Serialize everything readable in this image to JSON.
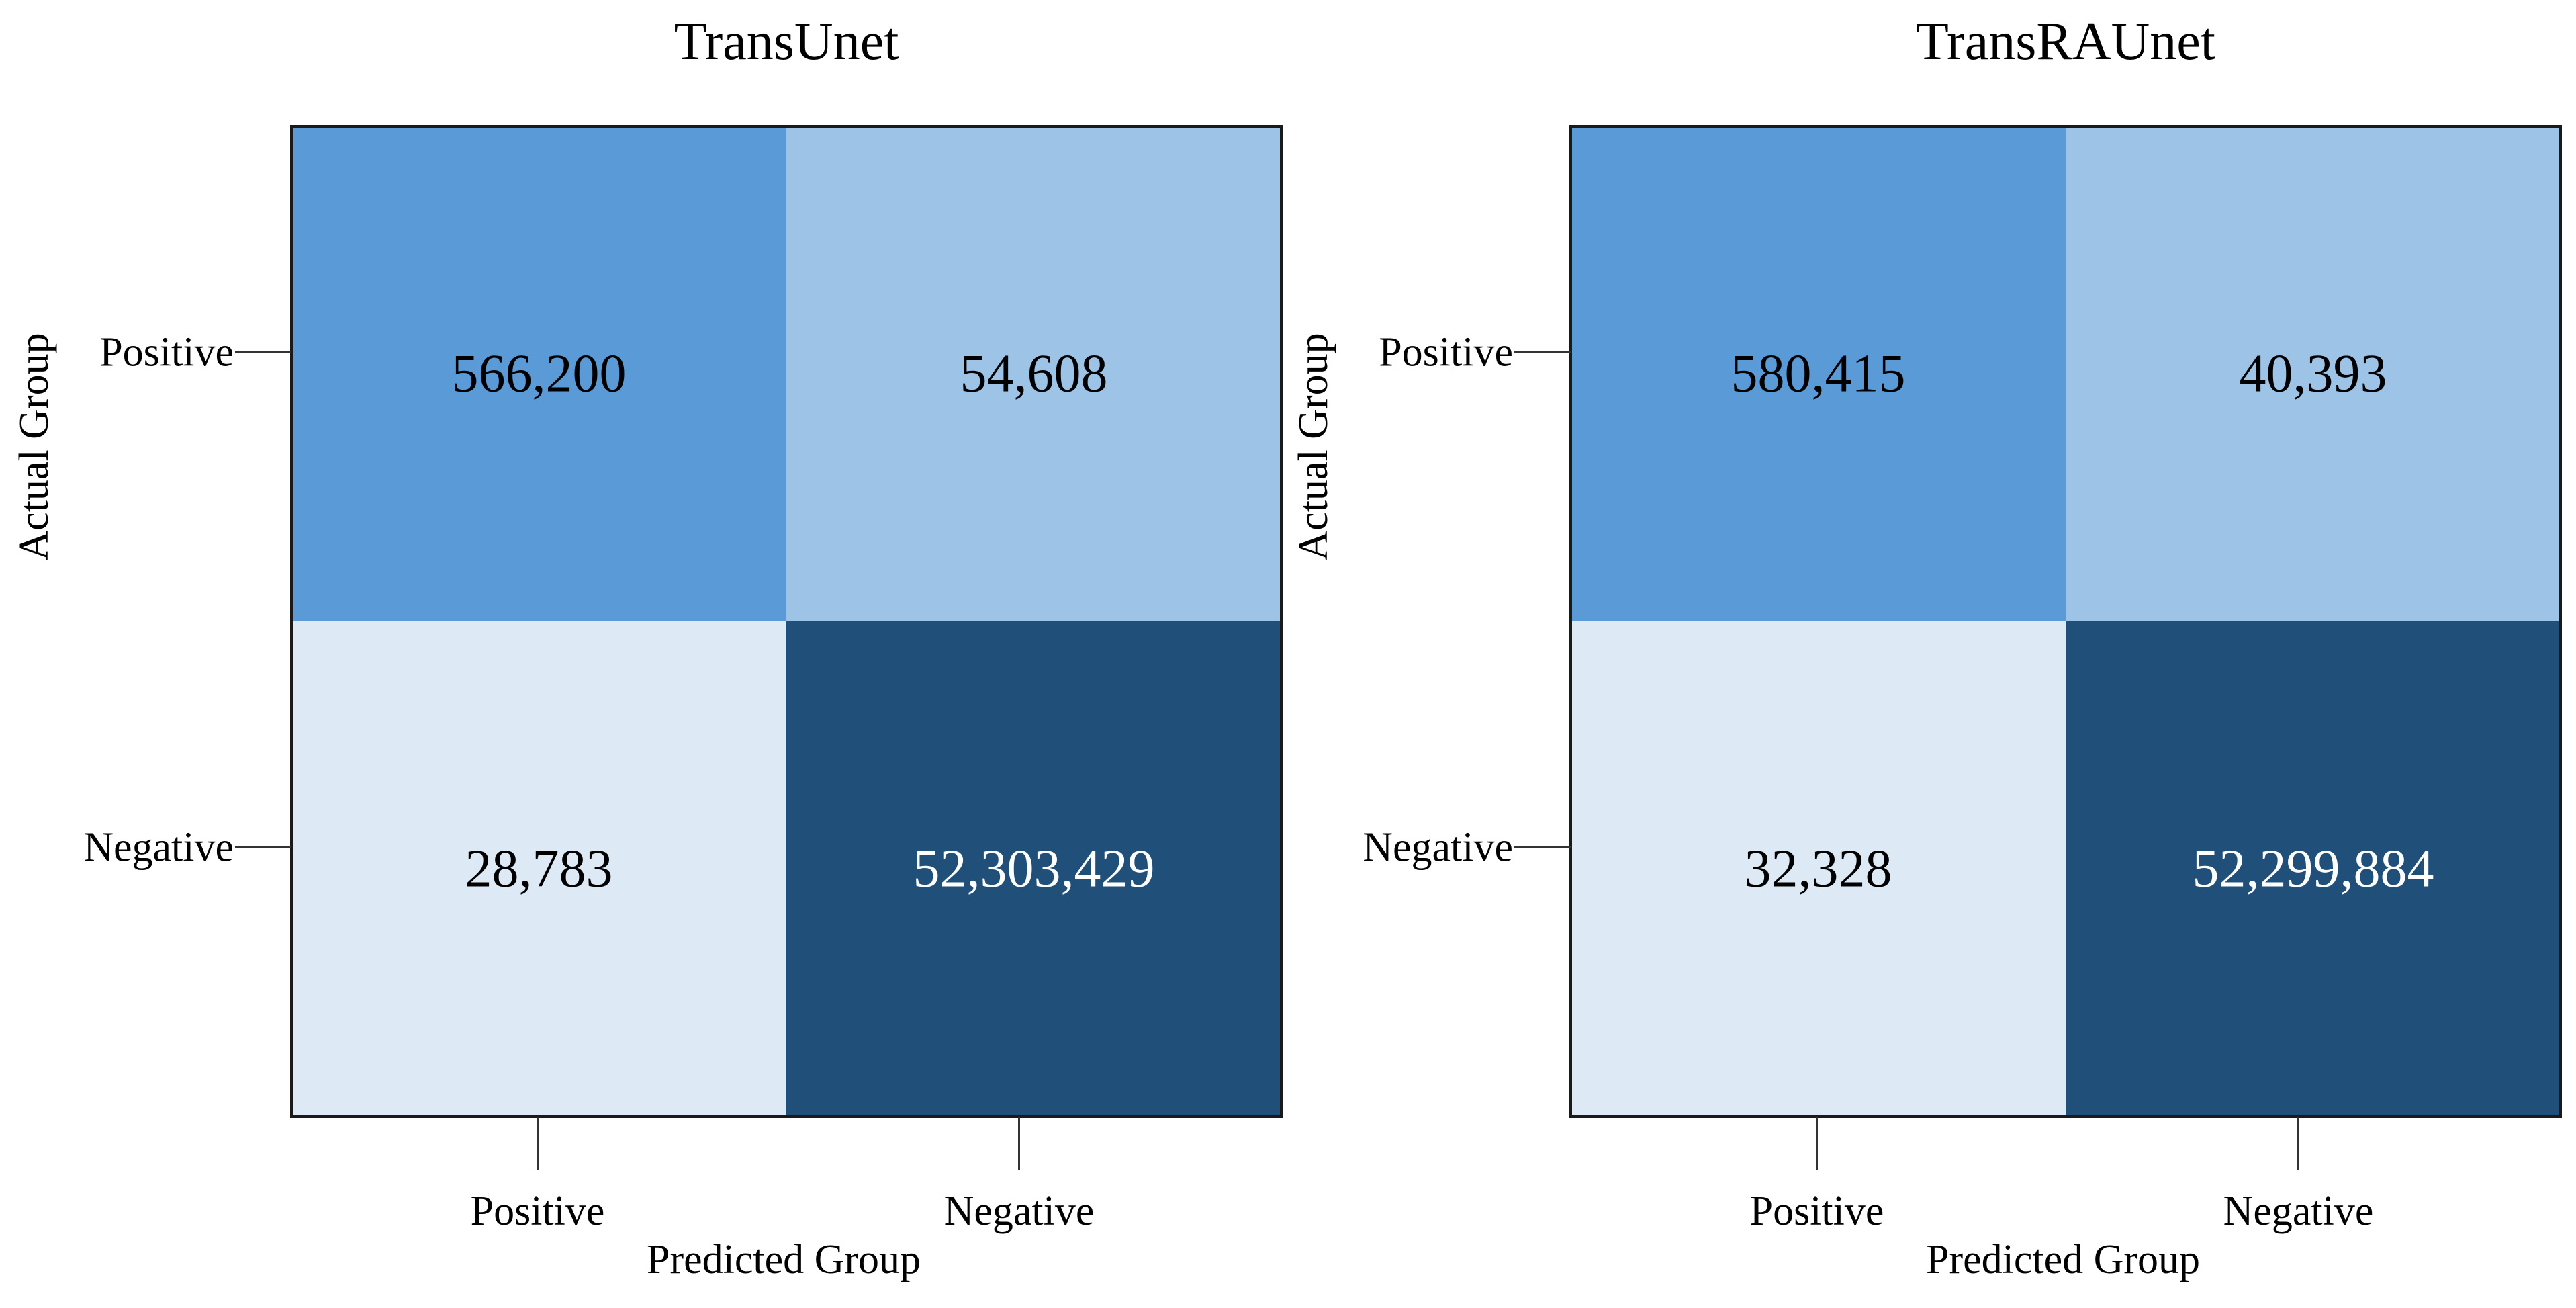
{
  "chart_data": [
    {
      "type": "heatmap",
      "title": "TransUnet",
      "xlabel": "Predicted Group",
      "ylabel": "Actual Group",
      "x_categories": [
        "Positive",
        "Negative"
      ],
      "y_categories": [
        "Positive",
        "Negative"
      ],
      "values": [
        [
          566200,
          54608
        ],
        [
          28783,
          52303429
        ]
      ],
      "cell_labels": [
        [
          "566,200",
          "54,608"
        ],
        [
          "28,783",
          "52,303,429"
        ]
      ],
      "cell_colors": [
        [
          "#5a9ad6",
          "#9dc3e7"
        ],
        [
          "#ddeaf6",
          "#204f7a"
        ]
      ],
      "cell_text_colors": [
        [
          "#000000",
          "#000000"
        ],
        [
          "#000000",
          "#ffffff"
        ]
      ]
    },
    {
      "type": "heatmap",
      "title": "TransRAUnet",
      "xlabel": "Predicted Group",
      "ylabel": "Actual Group",
      "x_categories": [
        "Positive",
        "Negative"
      ],
      "y_categories": [
        "Positive",
        "Negative"
      ],
      "values": [
        [
          580415,
          40393
        ],
        [
          32328,
          52299884
        ]
      ],
      "cell_labels": [
        [
          "580,415",
          "40,393"
        ],
        [
          "32,328",
          "52,299,884"
        ]
      ],
      "cell_colors": [
        [
          "#5a9ad6",
          "#9dc3e7"
        ],
        [
          "#ddeaf6",
          "#204f7a"
        ]
      ],
      "cell_text_colors": [
        [
          "#000000",
          "#000000"
        ],
        [
          "#000000",
          "#ffffff"
        ]
      ]
    }
  ]
}
